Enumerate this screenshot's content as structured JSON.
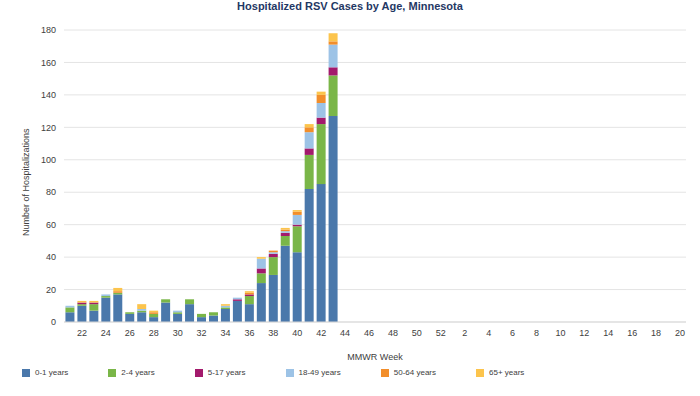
{
  "chart_data": {
    "type": "bar",
    "title": "Hospitalized RSV Cases by Age, Minnesota",
    "x_label": "MMWR Week",
    "y_label": "Number of Hospitalizations",
    "stacked": true,
    "grid": true,
    "legend": "bottom",
    "ylim": [
      0,
      180
    ],
    "yticks": [
      0,
      20,
      40,
      60,
      80,
      100,
      120,
      140,
      160,
      180
    ],
    "categories": [
      null,
      "22",
      null,
      "24",
      null,
      "26",
      null,
      "28",
      null,
      "30",
      null,
      "32",
      null,
      "34",
      null,
      "36",
      null,
      "38",
      null,
      "40",
      null,
      "42",
      null,
      "44",
      null,
      "46",
      null,
      "48",
      null,
      "50",
      null,
      "52",
      null,
      "2",
      null,
      "4",
      null,
      "6",
      null,
      "8",
      null,
      "10",
      null,
      "12",
      null,
      "14",
      null,
      "16",
      null,
      "18",
      null,
      "20"
    ],
    "series": [
      {
        "name": "0-1 years",
        "color": "#4a78ab",
        "values": [
          6,
          10,
          7,
          15,
          17,
          5,
          6,
          3,
          12,
          5,
          11,
          3,
          4,
          8,
          13,
          11,
          24,
          29,
          47,
          43,
          82,
          85,
          127,
          null,
          null,
          null,
          null,
          null,
          null,
          null,
          null,
          null,
          null,
          null,
          null,
          null,
          null,
          null,
          null,
          null,
          null,
          null,
          null,
          null,
          null,
          null,
          null,
          null,
          null,
          null,
          null,
          null
        ]
      },
      {
        "name": "2-4 years",
        "color": "#7ab648",
        "values": [
          3,
          1,
          4,
          1,
          1,
          1,
          1,
          2,
          2,
          1,
          3,
          2,
          2,
          1,
          0,
          5,
          6,
          11,
          6,
          16,
          21,
          37,
          25,
          null,
          null,
          null,
          null,
          null,
          null,
          null,
          null,
          null,
          null,
          null,
          null,
          null,
          null,
          null,
          null,
          null,
          null,
          null,
          null,
          null,
          null,
          null,
          null,
          null,
          null,
          null,
          null,
          null
        ]
      },
      {
        "name": "5-17 years",
        "color": "#a31a6c",
        "values": [
          0,
          1,
          1,
          0,
          0,
          0,
          0,
          0,
          0,
          0,
          0,
          0,
          0,
          0,
          1,
          1,
          3,
          2,
          2,
          1,
          4,
          4,
          5,
          null,
          null,
          null,
          null,
          null,
          null,
          null,
          null,
          null,
          null,
          null,
          null,
          null,
          null,
          null,
          null,
          null,
          null,
          null,
          null,
          null,
          null,
          null,
          null,
          null,
          null,
          null,
          null,
          null
        ]
      },
      {
        "name": "18-49 years",
        "color": "#9dc3e6",
        "values": [
          1,
          0,
          0,
          1,
          0,
          0,
          1,
          0,
          0,
          1,
          0,
          0,
          0,
          1,
          1,
          0,
          6,
          1,
          1,
          6,
          10,
          9,
          14,
          null,
          null,
          null,
          null,
          null,
          null,
          null,
          null,
          null,
          null,
          null,
          null,
          null,
          null,
          null,
          null,
          null,
          null,
          null,
          null,
          null,
          null,
          null,
          null,
          null,
          null,
          null,
          null,
          null
        ]
      },
      {
        "name": "50-64 years",
        "color": "#f28e2b",
        "values": [
          0,
          0,
          0,
          0,
          1,
          0,
          0,
          1,
          0,
          0,
          0,
          0,
          0,
          0,
          0,
          1,
          0,
          1,
          1,
          2,
          3,
          5,
          2,
          null,
          null,
          null,
          null,
          null,
          null,
          null,
          null,
          null,
          null,
          null,
          null,
          null,
          null,
          null,
          null,
          null,
          null,
          null,
          null,
          null,
          null,
          null,
          null,
          null,
          null,
          null,
          null,
          null
        ]
      },
      {
        "name": "65+ years",
        "color": "#fcc44c",
        "values": [
          0,
          1,
          1,
          0,
          2,
          0,
          3,
          1,
          0,
          0,
          0,
          0,
          0,
          1,
          0,
          1,
          1,
          0,
          1,
          1,
          2,
          2,
          5,
          null,
          null,
          null,
          null,
          null,
          null,
          null,
          null,
          null,
          null,
          null,
          null,
          null,
          null,
          null,
          null,
          null,
          null,
          null,
          null,
          null,
          null,
          null,
          null,
          null,
          null,
          null,
          null,
          null
        ]
      }
    ]
  }
}
